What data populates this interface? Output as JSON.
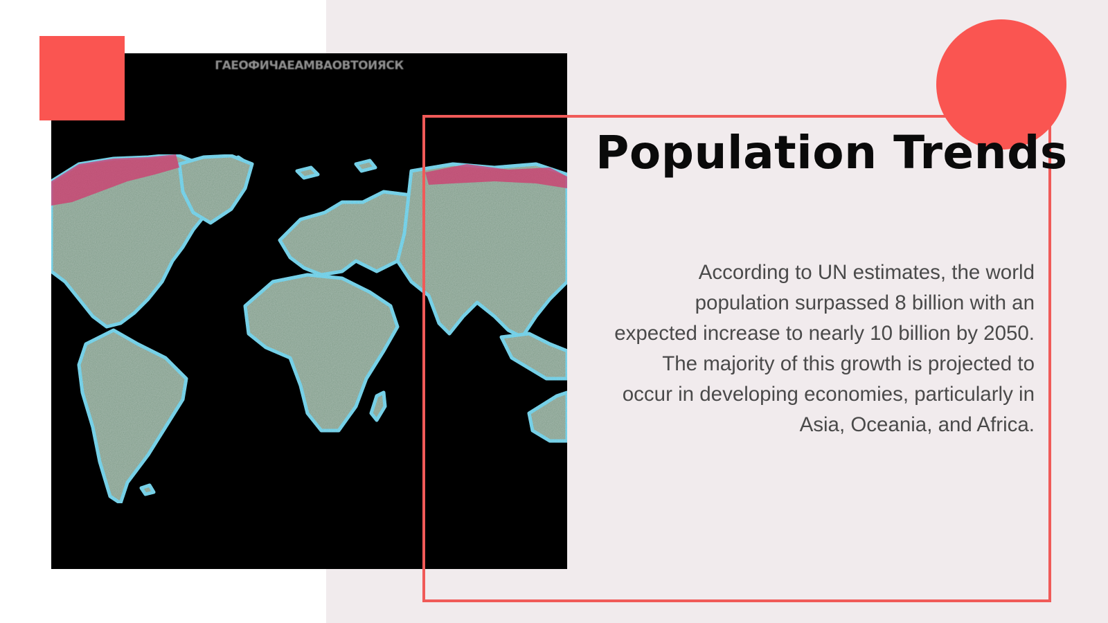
{
  "slide": {
    "title": "Population Trends",
    "body": "According to UN estimates, the world population surpassed 8 billion with an expected increase to nearly 10 billion by 2050. The majority of this growth is projected to occur in developing economies, particularly in Asia, Oceania, and Africa."
  },
  "image": {
    "caption": "ГАЕОФИЧАЕАМВАОВТОИЯСК"
  },
  "colors": {
    "accent": "#fa5551",
    "panel_background": "#f1ebed",
    "title_text": "#0a0a0a",
    "body_text": "#4a4a4a",
    "map_background": "#000000",
    "land_fill": "#7d9a86",
    "land_edge": "#3ecff0",
    "polar_tint": "#d0386e"
  }
}
